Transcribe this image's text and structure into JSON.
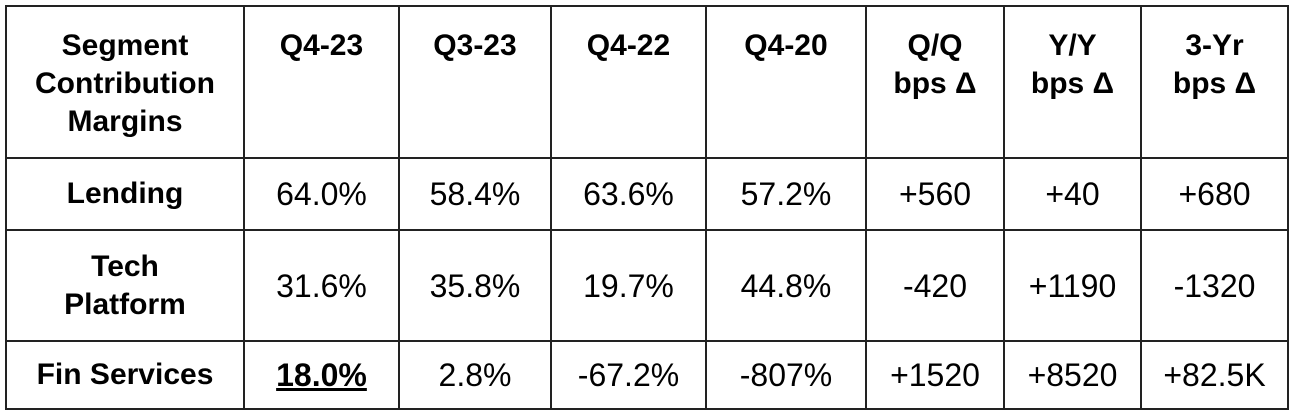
{
  "table": {
    "header": [
      [
        "Segment",
        "Contribution",
        "Margins"
      ],
      [
        "Q4-23"
      ],
      [
        "Q3-23"
      ],
      [
        "Q4-22"
      ],
      [
        "Q4-20"
      ],
      [
        "Q/Q",
        "bps Δ"
      ],
      [
        "Y/Y",
        "bps Δ"
      ],
      [
        "3-Yr",
        "bps Δ"
      ]
    ],
    "rows": [
      {
        "label": [
          "Lending"
        ],
        "cells": [
          "64.0%",
          "58.4%",
          "63.6%",
          "57.2%",
          "+560",
          "+40",
          "+680"
        ]
      },
      {
        "label": [
          "Tech",
          "Platform"
        ],
        "cells": [
          "31.6%",
          "35.8%",
          "19.7%",
          "44.8%",
          "-420",
          "+1190",
          "-1320"
        ]
      },
      {
        "label": [
          "Fin Services"
        ],
        "cells": [
          "18.0%",
          "2.8%",
          "-67.2%",
          "-807%",
          "+1520",
          "+8520",
          "+82.5K"
        ]
      }
    ]
  }
}
